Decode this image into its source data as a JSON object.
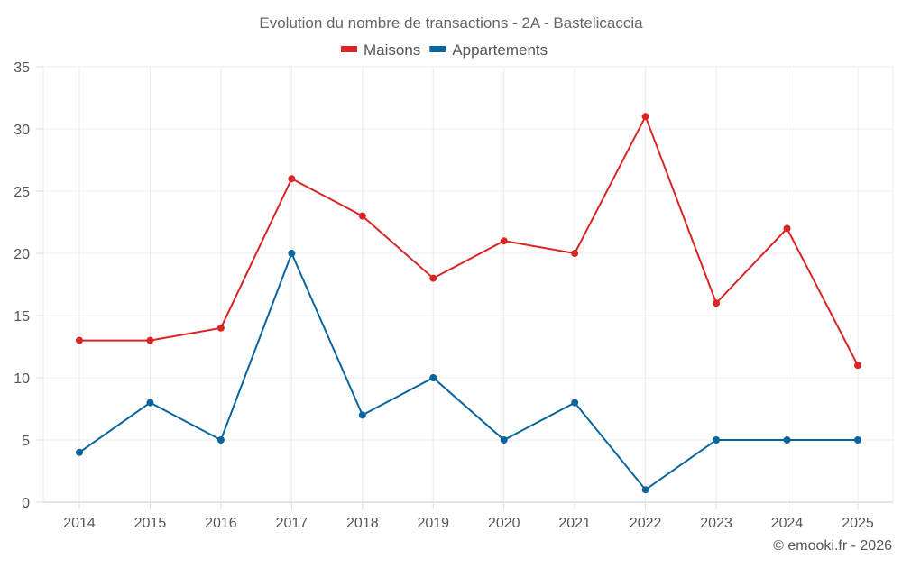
{
  "chart_data": {
    "type": "line",
    "title": "Evolution du nombre de transactions - 2A - Bastelicaccia",
    "xlabel": "",
    "ylabel": "",
    "x": [
      "2014",
      "2015",
      "2016",
      "2017",
      "2018",
      "2019",
      "2020",
      "2021",
      "2022",
      "2023",
      "2024",
      "2025"
    ],
    "ylim": [
      0,
      35
    ],
    "yticks": [
      0,
      5,
      10,
      15,
      20,
      25,
      30,
      35
    ],
    "grid": true,
    "legend_position": "top-center",
    "series": [
      {
        "name": "Maisons",
        "color": "#d92525",
        "values": [
          13,
          13,
          14,
          26,
          23,
          18,
          21,
          20,
          31,
          16,
          22,
          11
        ]
      },
      {
        "name": "Appartements",
        "color": "#0a659e",
        "values": [
          4,
          8,
          5,
          20,
          7,
          10,
          5,
          8,
          1,
          5,
          5,
          5
        ]
      }
    ],
    "credit": "© emooki.fr - 2026"
  }
}
